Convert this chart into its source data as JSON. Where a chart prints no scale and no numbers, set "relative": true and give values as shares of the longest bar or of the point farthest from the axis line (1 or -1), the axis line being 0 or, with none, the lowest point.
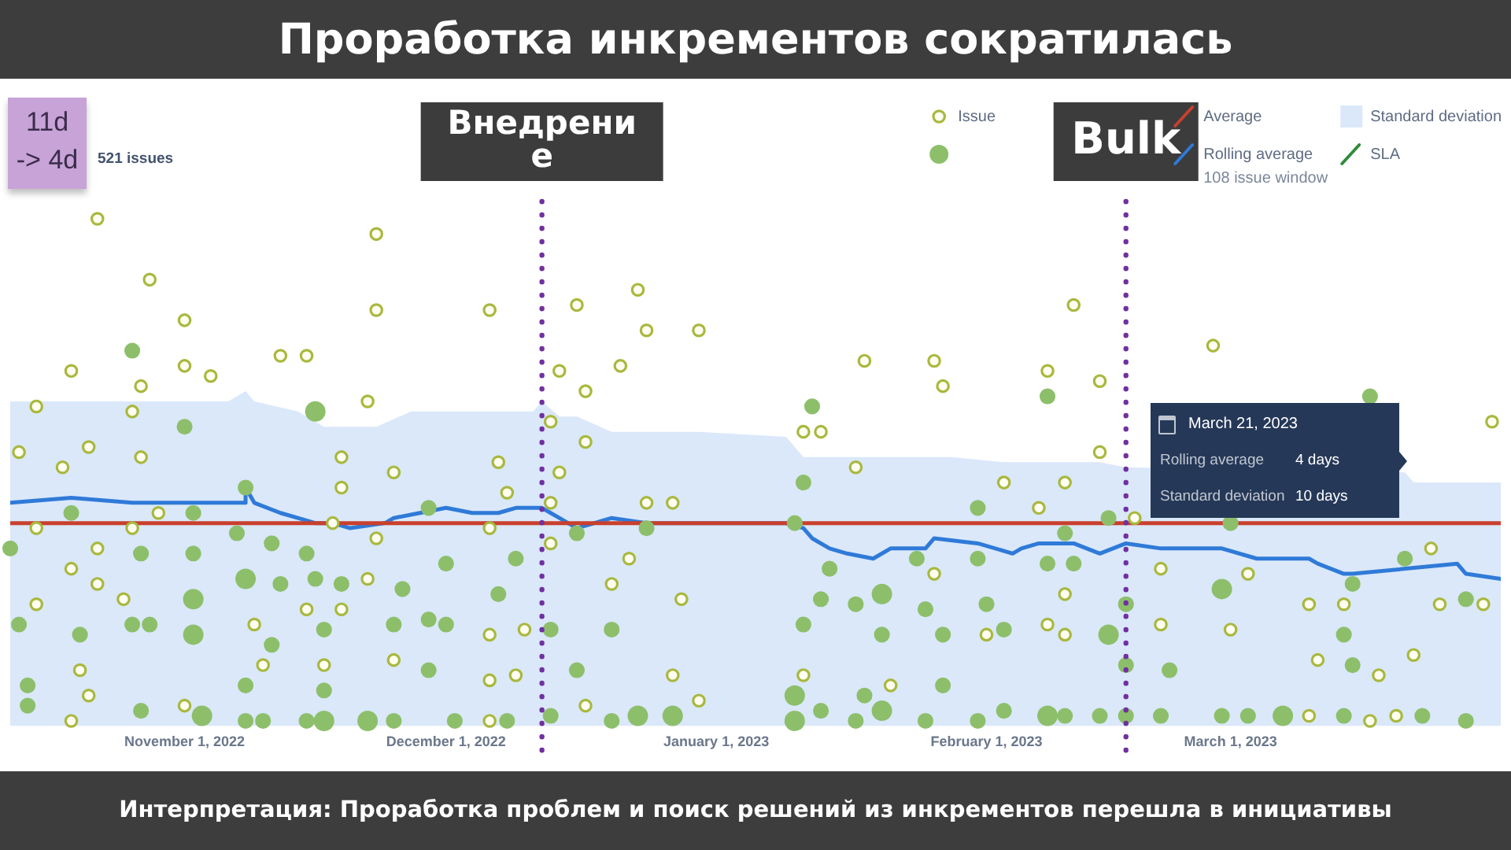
{
  "chart_data": {
    "type": "scatter",
    "relative": true,
    "title": "Проработка инкрементов сократилась",
    "xlim": [
      "2022-10-12",
      "2023-04-01"
    ],
    "xticks": [
      {
        "value": "2022-11-01",
        "label": "November 1, 2022"
      },
      {
        "value": "2022-12-01",
        "label": "December 1, 2022"
      },
      {
        "value": "2023-01-01",
        "label": "January 1, 2023"
      },
      {
        "value": "2023-02-01",
        "label": "February 1, 2023"
      },
      {
        "value": "2023-03-01",
        "label": "March 1, 2023"
      }
    ],
    "legend": "top right",
    "series": [
      {
        "name": "Issue",
        "marker": "circle",
        "color": "#a9b83d",
        "x": [
          "2022-10-22",
          "2022-11-23",
          "2022-10-28",
          "2022-11-01",
          "2022-11-23",
          "2022-12-06",
          "2022-11-01",
          "2022-11-12",
          "2022-11-15",
          "2022-10-19",
          "2022-10-27",
          "2022-11-04",
          "2022-10-15",
          "2022-10-26",
          "2022-11-22",
          "2022-10-13",
          "2022-10-21",
          "2022-10-27",
          "2022-10-18",
          "2022-11-19",
          "2022-11-25",
          "2022-12-07",
          "2022-11-19",
          "2022-12-08",
          "2022-10-29",
          "2022-10-15",
          "2022-10-26",
          "2022-11-18",
          "2022-12-06",
          "2022-11-23",
          "2022-10-22",
          "2022-10-19",
          "2022-10-22",
          "2022-11-22",
          "2022-10-15",
          "2022-10-25",
          "2022-11-15",
          "2022-11-19",
          "2022-11-09",
          "2022-12-06",
          "2022-12-10",
          "2022-10-20",
          "2022-11-10",
          "2022-11-17",
          "2022-11-25",
          "2022-12-06",
          "2022-12-09",
          "2022-10-21",
          "2022-11-01",
          "2022-10-19",
          "2022-12-06",
          "2022-12-23",
          "2022-12-16",
          "2022-12-24",
          "2022-12-30",
          "2022-12-14",
          "2022-12-21",
          "2023-01-18",
          "2023-01-26",
          "2022-12-17",
          "2023-01-27",
          "2022-12-13",
          "2023-01-11",
          "2023-01-13",
          "2022-12-17",
          "2022-12-14",
          "2023-01-17",
          "2023-02-03",
          "2022-12-24",
          "2022-12-27",
          "2022-12-13",
          "2022-12-13",
          "2022-12-22",
          "2023-01-26",
          "2022-12-20",
          "2022-12-28",
          "2023-02-01",
          "2022-12-27",
          "2023-01-11",
          "2023-01-21",
          "2022-12-17",
          "2022-12-30",
          "2023-02-11",
          "2023-02-27",
          "2023-02-08",
          "2023-02-14",
          "2023-03-31",
          "2023-02-14",
          "2023-02-10",
          "2023-02-07",
          "2023-02-18",
          "2023-03-24",
          "2023-02-21",
          "2023-03-03",
          "2023-02-10",
          "2023-03-10",
          "2023-03-14",
          "2023-03-25",
          "2023-03-30",
          "2023-02-08",
          "2023-02-10",
          "2023-02-21",
          "2023-03-01",
          "2023-03-11",
          "2023-03-22",
          "2023-03-18",
          "2023-03-10",
          "2023-03-17",
          "2023-03-20"
        ],
        "values": [
          1.0,
          0.97,
          0.88,
          0.8,
          0.82,
          0.82,
          0.71,
          0.73,
          0.73,
          0.7,
          0.67,
          0.69,
          0.63,
          0.62,
          0.64,
          0.54,
          0.55,
          0.53,
          0.51,
          0.53,
          0.5,
          0.52,
          0.47,
          0.46,
          0.42,
          0.39,
          0.39,
          0.4,
          0.39,
          0.37,
          0.35,
          0.31,
          0.28,
          0.29,
          0.24,
          0.25,
          0.23,
          0.23,
          0.2,
          0.18,
          0.19,
          0.11,
          0.12,
          0.12,
          0.13,
          0.09,
          0.1,
          0.06,
          0.04,
          0.01,
          0.01,
          0.86,
          0.83,
          0.78,
          0.78,
          0.7,
          0.71,
          0.72,
          0.72,
          0.66,
          0.67,
          0.6,
          0.58,
          0.58,
          0.56,
          0.5,
          0.51,
          0.48,
          0.44,
          0.44,
          0.44,
          0.36,
          0.33,
          0.3,
          0.28,
          0.25,
          0.18,
          0.1,
          0.1,
          0.08,
          0.04,
          0.05,
          0.83,
          0.75,
          0.7,
          0.68,
          0.6,
          0.54,
          0.48,
          0.43,
          0.41,
          0.35,
          0.31,
          0.3,
          0.26,
          0.24,
          0.24,
          0.24,
          0.24,
          0.2,
          0.18,
          0.2,
          0.19,
          0.13,
          0.14,
          0.1,
          0.02,
          0.01,
          0.02
        ]
      },
      {
        "type": "bubble",
        "marker": "circle",
        "color": "#8dbf6b",
        "x": [
          "2022-10-26",
          "2022-11-16",
          "2022-11-01",
          "2022-11-08",
          "2022-10-19",
          "2022-11-02",
          "2022-11-29",
          "2022-11-07",
          "2022-10-12",
          "2022-10-27",
          "2022-11-02",
          "2022-11-11",
          "2022-11-15",
          "2022-12-01",
          "2022-12-09",
          "2022-11-08",
          "2022-11-12",
          "2022-11-16",
          "2022-11-19",
          "2022-11-26",
          "2022-12-07",
          "2022-11-02",
          "2022-10-13",
          "2022-10-20",
          "2022-10-26",
          "2022-10-28",
          "2022-11-02",
          "2022-11-17",
          "2022-11-11",
          "2022-11-25",
          "2022-11-29",
          "2022-12-01",
          "2022-11-29",
          "2022-10-14",
          "2022-11-08",
          "2022-11-17",
          "2022-10-14",
          "2022-10-27",
          "2022-11-03",
          "2022-11-08",
          "2022-11-10",
          "2022-11-15",
          "2022-11-17",
          "2022-11-22",
          "2022-11-25",
          "2022-12-02",
          "2022-12-08",
          "2023-01-12",
          "2023-01-11",
          "2023-01-31",
          "2023-01-10",
          "2022-12-16",
          "2022-12-24",
          "2023-01-24",
          "2023-01-31",
          "2023-01-14",
          "2023-01-13",
          "2023-01-17",
          "2023-01-20",
          "2023-01-25",
          "2023-02-01",
          "2022-12-13",
          "2022-12-20",
          "2023-01-11",
          "2023-01-20",
          "2023-01-27",
          "2023-02-03",
          "2022-12-16",
          "2023-01-27",
          "2023-01-10",
          "2023-01-18",
          "2022-12-13",
          "2022-12-20",
          "2022-12-23",
          "2022-12-27",
          "2023-01-10",
          "2023-01-13",
          "2023-01-17",
          "2023-01-20",
          "2023-01-25",
          "2023-01-31",
          "2023-02-03",
          "2023-02-08",
          "2023-03-17",
          "2023-02-10",
          "2023-02-15",
          "2023-03-01",
          "2023-03-21",
          "2023-02-08",
          "2023-02-11",
          "2023-02-28",
          "2023-03-15",
          "2023-03-28",
          "2023-02-17",
          "2023-02-15",
          "2023-03-14",
          "2023-02-17",
          "2023-02-22",
          "2023-03-15",
          "2023-02-08",
          "2023-02-10",
          "2023-02-14",
          "2023-02-17",
          "2023-02-21",
          "2023-02-28",
          "2023-03-03",
          "2023-03-07",
          "2023-03-14",
          "2023-03-23",
          "2023-03-28"
        ],
        "values": [
          0.74,
          0.62,
          0.59,
          0.47,
          0.42,
          0.42,
          0.43,
          0.38,
          0.35,
          0.34,
          0.34,
          0.36,
          0.34,
          0.32,
          0.33,
          0.29,
          0.28,
          0.29,
          0.28,
          0.27,
          0.26,
          0.25,
          0.2,
          0.18,
          0.2,
          0.2,
          0.18,
          0.19,
          0.16,
          0.2,
          0.21,
          0.2,
          0.11,
          0.08,
          0.08,
          0.07,
          0.04,
          0.03,
          0.02,
          0.01,
          0.01,
          0.01,
          0.01,
          0.01,
          0.01,
          0.01,
          0.01,
          0.63,
          0.48,
          0.43,
          0.4,
          0.38,
          0.39,
          0.33,
          0.33,
          0.31,
          0.25,
          0.24,
          0.26,
          0.23,
          0.24,
          0.19,
          0.19,
          0.2,
          0.18,
          0.18,
          0.19,
          0.11,
          0.08,
          0.06,
          0.06,
          0.02,
          0.01,
          0.02,
          0.02,
          0.01,
          0.03,
          0.01,
          0.03,
          0.01,
          0.01,
          0.03,
          0.65,
          0.65,
          0.38,
          0.41,
          0.4,
          0.33,
          0.32,
          0.32,
          0.27,
          0.28,
          0.25,
          0.24,
          0.18,
          0.18,
          0.12,
          0.11,
          0.12,
          0.02,
          0.02,
          0.02,
          0.02,
          0.02,
          0.02,
          0.02,
          0.02,
          0.02,
          0.02,
          0.01
        ],
        "sizes": [
          0.6,
          1,
          0.6,
          0.6,
          0.6,
          0.6,
          0.6,
          0.6,
          0.6,
          0.6,
          0.6,
          0.6,
          0.6,
          0.6,
          0.6,
          1,
          0.6,
          0.6,
          0.6,
          0.6,
          0.6,
          1,
          0.6,
          0.6,
          0.6,
          0.6,
          1,
          0.6,
          0.6,
          0.6,
          0.6,
          0.6,
          0.6,
          0.6,
          0.6,
          0.6,
          0.6,
          0.6,
          1,
          0.6,
          0.6,
          0.6,
          1,
          1,
          0.6,
          0.6,
          0.6,
          0.6,
          0.6,
          0.6,
          0.6,
          0.6,
          0.6,
          0.6,
          0.6,
          0.6,
          0.6,
          0.6,
          1,
          0.6,
          0.6,
          0.6,
          0.6,
          0.6,
          0.6,
          0.6,
          0.6,
          0.6,
          0.6,
          1,
          0.6,
          0.6,
          0.6,
          1,
          1,
          1,
          0.6,
          0.6,
          1,
          0.6,
          0.6,
          0.6,
          0.6,
          0.6,
          0.6,
          0.6,
          0.6,
          0.6,
          0.6,
          0.6,
          1,
          0.6,
          0.6,
          0.6,
          1,
          0.6,
          0.6,
          0.6,
          0.6,
          1,
          0.6,
          0.6,
          0.6,
          0.6,
          0.6,
          0.6,
          1,
          0.6,
          0.6,
          0.6
        ]
      },
      {
        "name": "Average",
        "type": "line",
        "color": "#c8402e",
        "x": [
          "2022-10-12",
          "2023-04-01"
        ],
        "values": [
          0.4,
          0.4
        ]
      },
      {
        "name": "Rolling average",
        "type": "line",
        "color": "#2f7ad8",
        "x": [
          "2022-10-12",
          "2022-10-19",
          "2022-10-26",
          "2022-10-29",
          "2022-10-31",
          "2022-11-04",
          "2022-11-08",
          "2022-11-08",
          "2022-11-09",
          "2022-11-12",
          "2022-11-14",
          "2022-11-16",
          "2022-11-18",
          "2022-11-20",
          "2022-11-24",
          "2022-11-25",
          "2022-11-28",
          "2022-12-01",
          "2022-12-04",
          "2022-12-07",
          "2022-12-09",
          "2022-12-12",
          "2022-12-13",
          "2022-12-14",
          "2022-12-16",
          "2022-12-20",
          "2022-12-24",
          "2022-12-27",
          "2023-01-09",
          "2023-01-11",
          "2023-01-12",
          "2023-01-14",
          "2023-01-16",
          "2023-01-19",
          "2023-01-21",
          "2023-01-25",
          "2023-01-26",
          "2023-01-31",
          "2023-02-04",
          "2023-02-05",
          "2023-02-07",
          "2023-02-11",
          "2023-02-14",
          "2023-02-17",
          "2023-02-21",
          "2023-02-28",
          "2023-03-04",
          "2023-03-10",
          "2023-03-11",
          "2023-03-14",
          "2023-03-15",
          "2023-03-27",
          "2023-03-28",
          "2023-04-01"
        ],
        "values": [
          0.44,
          0.45,
          0.44,
          0.44,
          0.44,
          0.44,
          0.44,
          0.47,
          0.44,
          0.42,
          0.41,
          0.4,
          0.4,
          0.39,
          0.4,
          0.41,
          0.42,
          0.43,
          0.42,
          0.42,
          0.43,
          0.43,
          0.42,
          0.41,
          0.39,
          0.41,
          0.4,
          0.4,
          0.4,
          0.39,
          0.37,
          0.35,
          0.34,
          0.33,
          0.35,
          0.35,
          0.37,
          0.36,
          0.34,
          0.35,
          0.36,
          0.36,
          0.34,
          0.36,
          0.35,
          0.35,
          0.33,
          0.33,
          0.32,
          0.3,
          0.3,
          0.32,
          0.3,
          0.29
        ]
      },
      {
        "name": "Standard deviation",
        "type": "area",
        "color": "#dae8fa",
        "x": [
          "2022-10-12",
          "2022-11-06",
          "2022-11-08",
          "2022-11-09",
          "2022-11-14",
          "2022-11-17",
          "2022-11-23",
          "2022-11-27",
          "2022-12-11",
          "2022-12-12",
          "2022-12-14",
          "2022-12-16",
          "2022-12-20",
          "2022-12-30",
          "2023-01-09",
          "2023-01-11",
          "2023-01-17",
          "2023-01-28",
          "2023-02-03",
          "2023-02-14",
          "2023-02-17",
          "2023-03-21",
          "2023-03-22",
          "2023-04-01"
        ],
        "values": [
          0.64,
          0.64,
          0.66,
          0.64,
          0.62,
          0.59,
          0.59,
          0.62,
          0.62,
          0.64,
          0.61,
          0.61,
          0.58,
          0.58,
          0.57,
          0.53,
          0.53,
          0.53,
          0.52,
          0.52,
          0.51,
          0.5,
          0.48,
          0.48
        ]
      },
      {
        "name": "SLA",
        "type": "line",
        "color": "#2e8b3a"
      }
    ],
    "ref_lines": [
      {
        "axis": "x",
        "value": "2022-12-12",
        "label": "Внедрение",
        "color": "#7030a0",
        "line_style": "dotted"
      },
      {
        "axis": "x",
        "value": "2023-02-17",
        "label": "Bulk",
        "color": "#7030a0",
        "line_style": "dotted"
      }
    ],
    "annotations": [
      "Интерпретация: Проработка проблем и поиск решений из инкрементов перешла в инициативы",
      "11d -> 4d",
      "521 issues",
      "108 issue window",
      "March 21, 2023",
      "Rolling average",
      "4 days",
      "Standard deviation",
      "10 days"
    ]
  }
}
